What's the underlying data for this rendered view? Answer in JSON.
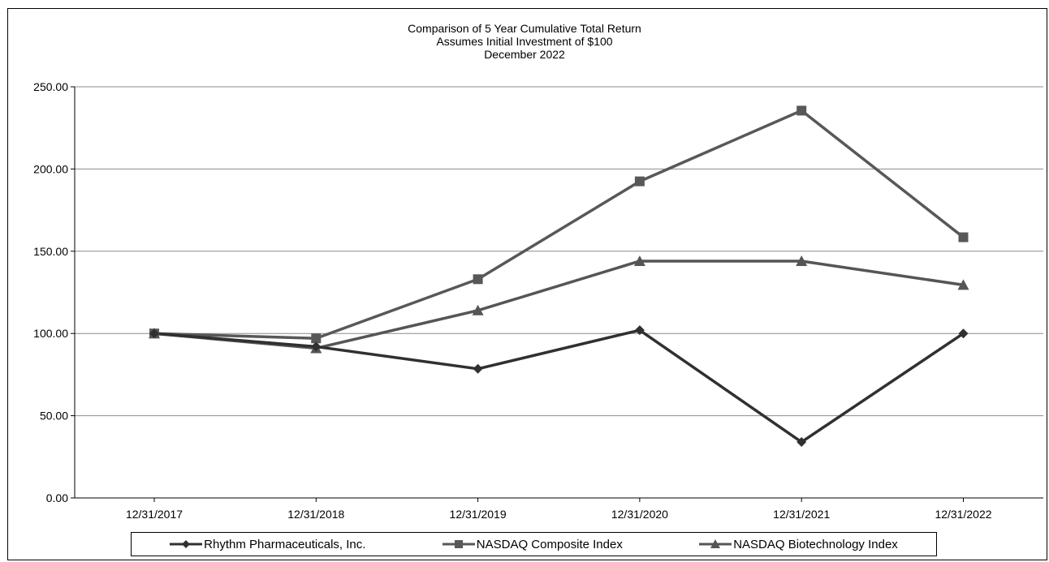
{
  "chart_data": {
    "type": "line",
    "title": [
      "Comparison  of 5 Year Cumulative  Total Return",
      "Assumes Initial Investment  of $100",
      "December  2022"
    ],
    "xlabel": "",
    "ylabel": "",
    "categories": [
      "12/31/2017",
      "12/31/2018",
      "12/31/2019",
      "12/31/2020",
      "12/31/2021",
      "12/31/2022"
    ],
    "ylim": [
      0,
      250
    ],
    "yticks": [
      "0.00",
      "50.00",
      "100.00",
      "150.00",
      "200.00",
      "250.00"
    ],
    "grid": true,
    "legend_position": "bottom",
    "series": [
      {
        "name": "Rhythm Pharmaceuticals, Inc.",
        "values": [
          100,
          92,
          78.5,
          102,
          34,
          100
        ],
        "marker": "diamond",
        "color": "#303030"
      },
      {
        "name": "NASDAQ Composite Index",
        "values": [
          100,
          97,
          133,
          192.5,
          235.5,
          158.5
        ],
        "marker": "square",
        "color": "#585858"
      },
      {
        "name": "NASDAQ Biotechnology Index",
        "values": [
          100,
          91,
          114,
          144,
          144,
          129.5
        ],
        "marker": "triangle",
        "color": "#555555"
      }
    ]
  }
}
